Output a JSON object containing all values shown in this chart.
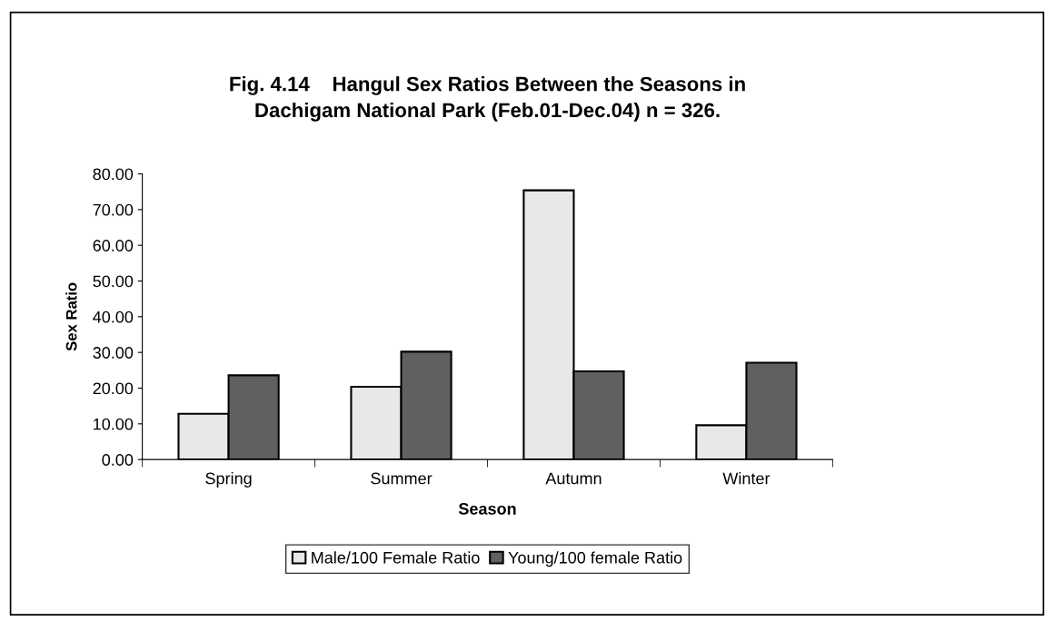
{
  "chart_data": {
    "type": "bar",
    "title": "Fig. 4.14    Hangul Sex Ratios Between the Seasons in\nDachigam National Park (Feb.01-Dec.04) n = 326.",
    "xlabel": "Season",
    "ylabel": "Sex Ratio",
    "categories": [
      "Spring",
      "Summer",
      "Autumn",
      "Winter"
    ],
    "series": [
      {
        "name": "Male/100 Female Ratio",
        "color": "#e8e8e8",
        "values": [
          12.8,
          20.4,
          75.4,
          9.6
        ]
      },
      {
        "name": "Young/100 female Ratio",
        "color": "#606060",
        "values": [
          23.6,
          30.2,
          24.7,
          27.1
        ]
      }
    ],
    "ylim": [
      0,
      80
    ],
    "yticks": [
      {
        "value": 0,
        "label": "0.00"
      },
      {
        "value": 10,
        "label": "10.00"
      },
      {
        "value": 20,
        "label": "20.00"
      },
      {
        "value": 30,
        "label": "30.00"
      },
      {
        "value": 40,
        "label": "40.00"
      },
      {
        "value": 50,
        "label": "50.00"
      },
      {
        "value": 60,
        "label": "60.00"
      },
      {
        "value": 70,
        "label": "70.00"
      },
      {
        "value": 80,
        "label": "80.00"
      }
    ],
    "grid": false,
    "legend": "bottom"
  }
}
